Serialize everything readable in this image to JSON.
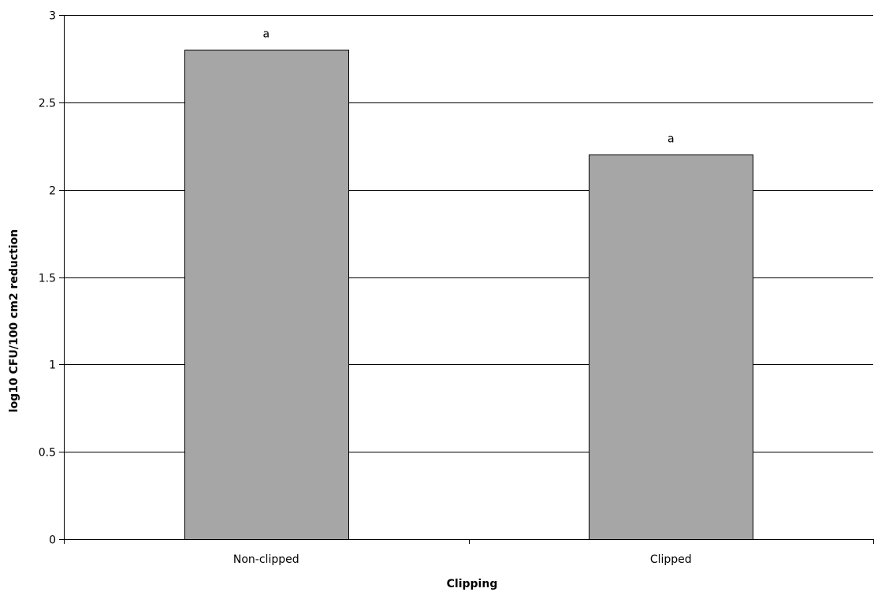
{
  "chart_data": {
    "type": "bar",
    "title": "",
    "xlabel": "Clipping",
    "ylabel": "log10 CFU/100 cm2 reduction",
    "categories": [
      "Non-clipped",
      "Clipped"
    ],
    "values": [
      2.8,
      2.2
    ],
    "data_labels": [
      "a",
      "a"
    ],
    "ylim": [
      0,
      3
    ],
    "yticks": [
      0,
      0.5,
      1,
      1.5,
      2,
      2.5,
      3
    ],
    "ytick_labels": [
      "0",
      "0.5",
      "1",
      "1.5",
      "2",
      "2.5",
      "3"
    ],
    "grid": true,
    "legend": "none",
    "bar_color": "#a6a6a6",
    "bar_edge_color": "#000000",
    "grid_color": "#000000"
  }
}
